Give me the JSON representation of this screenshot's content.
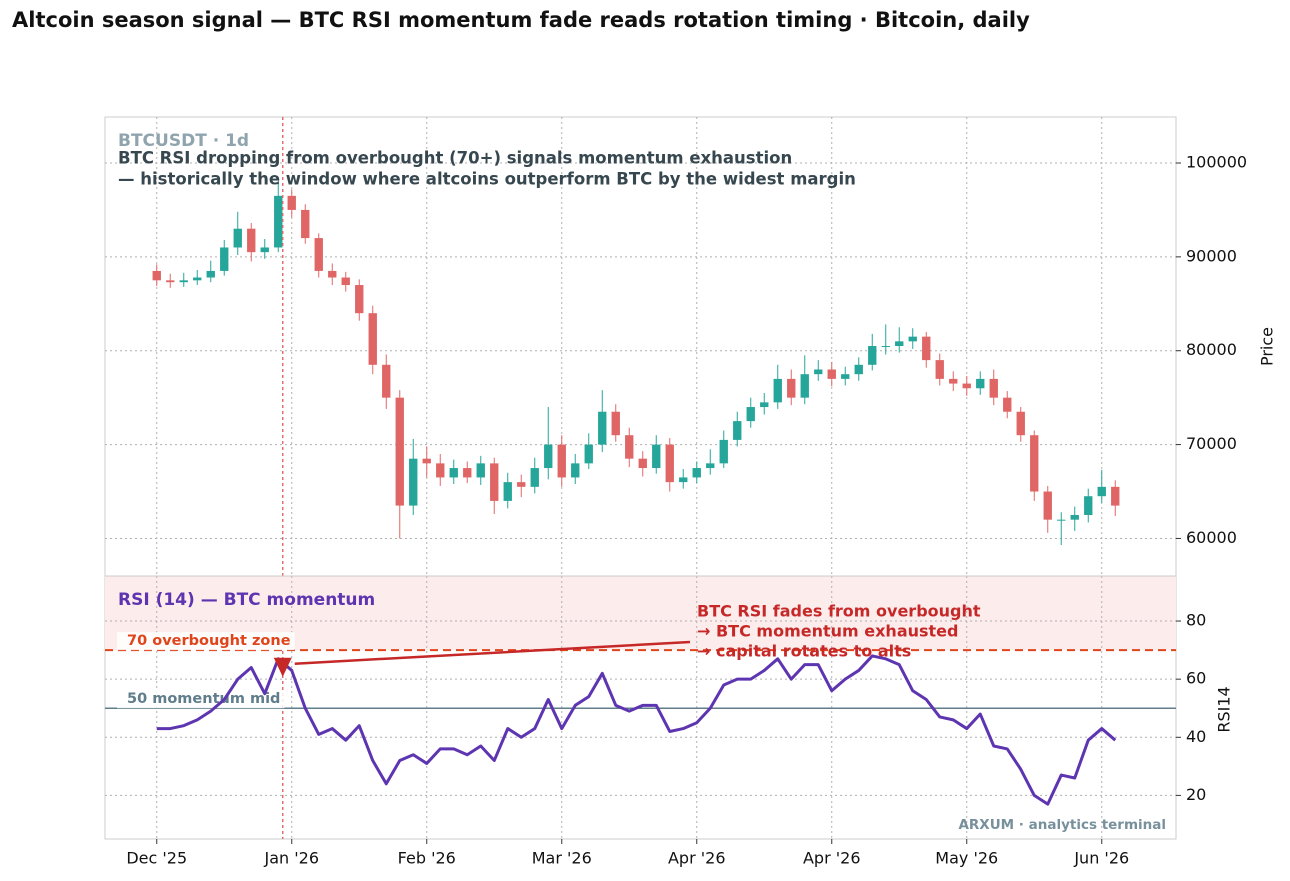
{
  "title": "Altcoin season signal — BTC RSI momentum fade reads rotation timing  ·  Bitcoin, daily",
  "chart_data": [
    {
      "type": "candlestick",
      "symbol_label": "BTCUSDT · 1d",
      "annotation": [
        "BTC RSI dropping from overbought (70+) signals momentum exhaustion",
        "— historically the window where altcoins outperform BTC by the widest margin"
      ],
      "y_label": "Price",
      "up_color": "#26a69a",
      "down_color": "#e06666",
      "grid": true,
      "event_x": 28,
      "xlim": [
        -11.5,
        226.5
      ],
      "ylim": [
        56000,
        104900
      ],
      "yticks": [
        60000,
        70000,
        80000,
        90000,
        100000
      ],
      "x": [
        0,
        3,
        6,
        9,
        12,
        15,
        18,
        21,
        24,
        27,
        30,
        33,
        36,
        39,
        42,
        45,
        48,
        51,
        54,
        57,
        60,
        63,
        66,
        69,
        72,
        75,
        78,
        81,
        84,
        87,
        90,
        93,
        96,
        99,
        102,
        105,
        108,
        111,
        114,
        117,
        120,
        123,
        126,
        129,
        132,
        135,
        138,
        141,
        144,
        147,
        150,
        153,
        156,
        159,
        162,
        165,
        168,
        171,
        174,
        177,
        180,
        183,
        186,
        189,
        192,
        195,
        198,
        201,
        204,
        207,
        210,
        213
      ],
      "open": [
        88500,
        87500,
        87300,
        87500,
        87800,
        88500,
        91000,
        93000,
        90500,
        91000,
        96500,
        95000,
        92000,
        88500,
        87800,
        87000,
        84000,
        78500,
        75000,
        63500,
        68500,
        68000,
        66500,
        67500,
        66500,
        68000,
        64000,
        66000,
        65500,
        67500,
        70000,
        66500,
        68000,
        70000,
        73500,
        71000,
        68500,
        67500,
        70000,
        66000,
        66500,
        67500,
        68000,
        70500,
        72500,
        74000,
        74500,
        77000,
        75000,
        77500,
        78000,
        77000,
        77500,
        78500,
        80500,
        80500,
        81000,
        81500,
        79000,
        77000,
        76500,
        76000,
        77000,
        75000,
        73500,
        71000,
        65000,
        62000,
        62000,
        62500,
        64500,
        65500
      ],
      "high": [
        89200,
        88200,
        88300,
        88600,
        89600,
        91800,
        94800,
        93600,
        91900,
        98500,
        97200,
        95600,
        92500,
        89300,
        88400,
        87600,
        84800,
        79600,
        75800,
        70600,
        69800,
        69000,
        68400,
        68200,
        68800,
        68600,
        67000,
        66800,
        68600,
        74000,
        71000,
        69000,
        71200,
        75800,
        74300,
        71800,
        69300,
        71000,
        70700,
        67400,
        68200,
        69500,
        71500,
        73500,
        75000,
        75500,
        78500,
        78000,
        79500,
        79000,
        78800,
        78300,
        79300,
        81800,
        82800,
        82500,
        82400,
        82000,
        79700,
        77800,
        77300,
        77800,
        78000,
        75700,
        74000,
        71500,
        65600,
        62800,
        63400,
        65300,
        67300,
        66200
      ],
      "low": [
        86900,
        86700,
        86800,
        87000,
        87300,
        88000,
        90200,
        89500,
        89800,
        90500,
        94200,
        91400,
        87800,
        87000,
        86300,
        83200,
        77500,
        73800,
        60000,
        62500,
        66500,
        65600,
        65800,
        65900,
        65700,
        62600,
        63200,
        64400,
        64800,
        66300,
        65500,
        65800,
        67400,
        69200,
        70300,
        67600,
        66600,
        66900,
        65000,
        65300,
        65900,
        66800,
        67500,
        69800,
        71800,
        73200,
        73800,
        74200,
        74300,
        76800,
        76200,
        76300,
        76800,
        77900,
        79600,
        79800,
        80200,
        78200,
        76300,
        75700,
        75200,
        75300,
        74200,
        72800,
        70300,
        64000,
        60600,
        59300,
        60800,
        61700,
        63800,
        62400
      ],
      "close": [
        87500,
        87300,
        87500,
        87800,
        88500,
        91000,
        93000,
        90500,
        91000,
        96500,
        95000,
        92000,
        88500,
        87800,
        87000,
        84000,
        78500,
        75000,
        63500,
        68500,
        68000,
        66500,
        67500,
        66500,
        68000,
        64000,
        66000,
        65500,
        67500,
        70000,
        66500,
        68000,
        70000,
        73500,
        71000,
        68500,
        67500,
        70000,
        66000,
        66500,
        67500,
        68000,
        70500,
        72500,
        74000,
        74500,
        77000,
        75000,
        77500,
        78000,
        77000,
        77500,
        78500,
        80500,
        80500,
        81000,
        81500,
        79000,
        77000,
        76500,
        76000,
        77000,
        75000,
        73500,
        71000,
        65000,
        62000,
        62000,
        62500,
        64500,
        65500,
        63500
      ]
    },
    {
      "type": "line",
      "title": "RSI (14) — BTC momentum",
      "y_label": "RSI14",
      "grid": true,
      "xlim": [
        -11.5,
        226.5
      ],
      "ylim": [
        5,
        95.5
      ],
      "yticks": [
        20,
        40,
        60,
        80
      ],
      "xticks": [
        {
          "value": 0,
          "label": "Dec '25"
        },
        {
          "value": 30,
          "label": "Jan '26"
        },
        {
          "value": 60,
          "label": "Feb '26"
        },
        {
          "value": 90,
          "label": "Mar '26"
        },
        {
          "value": 120,
          "label": "Apr '26"
        },
        {
          "value": 150,
          "label": "Apr '26"
        },
        {
          "value": 180,
          "label": "May '26"
        },
        {
          "value": 210,
          "label": "Jun '26"
        }
      ],
      "zone_from": 70,
      "zone_color": "#fdecec",
      "levels": [
        {
          "value": 70,
          "label": "70  overbought zone",
          "color": "#e0441b",
          "dashed": true
        },
        {
          "value": 50,
          "label": "50  momentum mid",
          "color": "#607d8b",
          "dashed": false
        }
      ],
      "callout": {
        "lines": [
          "BTC RSI fades from overbought",
          "→ BTC momentum exhausted",
          "→ capital rotates to alts"
        ],
        "x": 28,
        "y": 66,
        "color": "#c62828"
      },
      "watermark": "ARXUM · analytics terminal",
      "series": [
        {
          "name": "RSI14",
          "color": "#5e35b1",
          "x": [
            0,
            3,
            6,
            9,
            12,
            15,
            18,
            21,
            24,
            27,
            30,
            33,
            36,
            39,
            42,
            45,
            48,
            51,
            54,
            57,
            60,
            63,
            66,
            69,
            72,
            75,
            78,
            81,
            84,
            87,
            90,
            93,
            96,
            99,
            102,
            105,
            108,
            111,
            114,
            117,
            120,
            123,
            126,
            129,
            132,
            135,
            138,
            141,
            144,
            147,
            150,
            153,
            156,
            159,
            162,
            165,
            168,
            171,
            174,
            177,
            180,
            183,
            186,
            189,
            192,
            195,
            198,
            201,
            204,
            207,
            210,
            213
          ],
          "values": [
            43,
            43,
            44,
            46,
            49,
            53,
            60,
            64,
            55,
            67,
            63,
            50,
            41,
            43,
            39,
            44,
            32,
            24,
            32,
            34,
            31,
            36,
            36,
            34,
            37,
            32,
            43,
            40,
            43,
            53,
            43,
            51,
            54,
            62,
            51,
            49,
            51,
            51,
            42,
            43,
            45,
            50,
            58,
            60,
            60,
            63,
            67,
            60,
            65,
            65,
            56,
            60,
            63,
            68,
            67,
            65,
            56,
            53,
            47,
            46,
            43,
            48,
            37,
            36,
            29,
            20,
            17,
            27,
            26,
            39,
            43,
            39
          ]
        }
      ]
    }
  ]
}
